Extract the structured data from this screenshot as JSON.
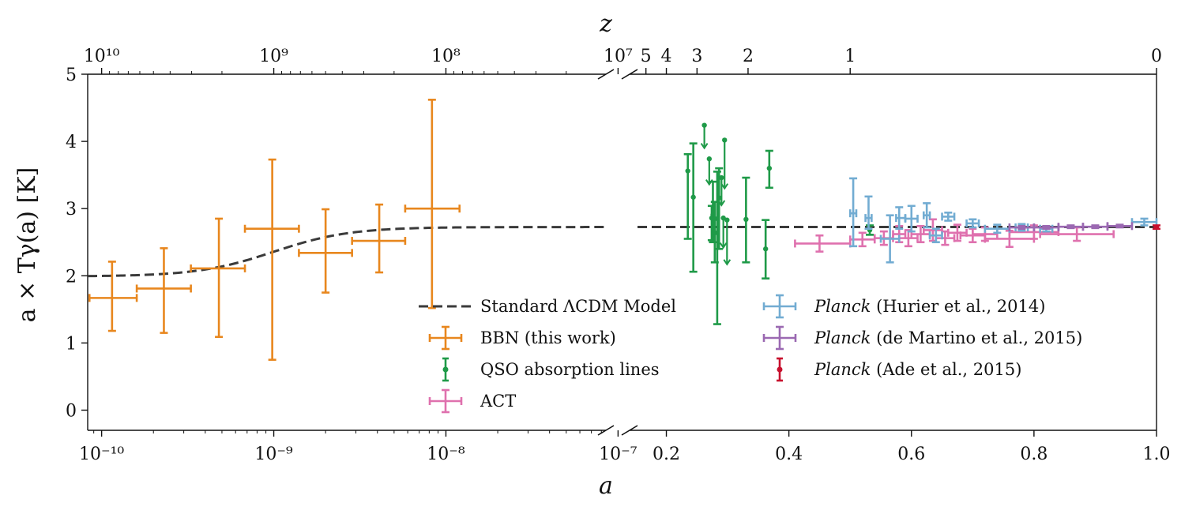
{
  "chart_data": {
    "type": "scatter",
    "xlabel": "a",
    "ylabel": "a × Tγ(a) [K]",
    "top_axis_label": "z",
    "ylim": [
      -0.3,
      5
    ],
    "yticks": [
      "0",
      "1",
      "2",
      "3",
      "4",
      "5"
    ],
    "x_axis_break": true,
    "left_panel": {
      "x_scale": "log",
      "xlim": [
        8.3e-11,
        8.5e-08
      ],
      "bottom_ticks": [
        {
          "value": 1e-10,
          "label": "10⁻¹⁰"
        },
        {
          "value": 1e-09,
          "label": "10⁻⁹"
        },
        {
          "value": 1e-08,
          "label": "10⁻⁸"
        },
        {
          "value": 1e-07,
          "label": "10⁻⁷"
        }
      ],
      "top_ticks": [
        {
          "z": 10000000000.0,
          "label": "10¹⁰"
        },
        {
          "z": 1000000000.0,
          "label": "10⁹"
        },
        {
          "z": 100000000.0,
          "label": "10⁸"
        },
        {
          "z": 10000000.0,
          "label": "10⁷"
        }
      ]
    },
    "right_panel": {
      "x_scale": "linear",
      "xlim": [
        0.14,
        1.0
      ],
      "bottom_ticks": [
        {
          "value": 0.2,
          "label": "0.2"
        },
        {
          "value": 0.4,
          "label": "0.4"
        },
        {
          "value": 0.6,
          "label": "0.6"
        },
        {
          "value": 0.8,
          "label": "0.8"
        },
        {
          "value": 1.0,
          "label": "1.0"
        }
      ],
      "top_ticks": [
        {
          "z": 5,
          "label": "5"
        },
        {
          "z": 4,
          "label": "4"
        },
        {
          "z": 3,
          "label": "3"
        },
        {
          "z": 2,
          "label": "2"
        },
        {
          "z": 1,
          "label": "1"
        },
        {
          "z": 0,
          "label": "0"
        }
      ]
    },
    "model": {
      "name": "Standard ΛCDM Model",
      "color": "#3a3a3a",
      "low_plateau": 1.99,
      "high_plateau": 2.7255,
      "log_a_mid": -9.0,
      "log_a_width": 0.22
    },
    "series": [
      {
        "name": "BBN (this work)",
        "color": "#e8871e",
        "panel": "left",
        "points": [
          {
            "a": 1.15e-10,
            "y": 1.67,
            "a_lo": 8.5e-11,
            "a_hi": 1.6e-10,
            "y_lo": 1.18,
            "y_hi": 2.21
          },
          {
            "a": 2.3e-10,
            "y": 1.81,
            "a_lo": 1.6e-10,
            "a_hi": 3.3e-10,
            "y_lo": 1.15,
            "y_hi": 2.41
          },
          {
            "a": 4.8e-10,
            "y": 2.11,
            "a_lo": 3.3e-10,
            "a_hi": 6.8e-10,
            "y_lo": 1.09,
            "y_hi": 2.85
          },
          {
            "a": 9.8e-10,
            "y": 2.7,
            "a_lo": 6.8e-10,
            "a_hi": 1.4e-09,
            "y_lo": 0.75,
            "y_hi": 3.73
          },
          {
            "a": 2e-09,
            "y": 2.34,
            "a_lo": 1.4e-09,
            "a_hi": 2.85e-09,
            "y_lo": 1.75,
            "y_hi": 2.99
          },
          {
            "a": 4.1e-09,
            "y": 2.52,
            "a_lo": 2.85e-09,
            "a_hi": 5.8e-09,
            "y_lo": 2.05,
            "y_hi": 3.06
          },
          {
            "a": 8.3e-09,
            "y": 3.0,
            "a_lo": 5.8e-09,
            "a_hi": 1.2e-08,
            "y_lo": 1.52,
            "y_hi": 4.62
          }
        ]
      },
      {
        "name": "QSO absorption lines",
        "color": "#1f9a48",
        "panel": "right",
        "points": [
          {
            "a": 0.235,
            "y": 3.56,
            "y_lo": 2.55,
            "y_hi": 3.81
          },
          {
            "a": 0.244,
            "y": 3.17,
            "y_lo": 2.06,
            "y_hi": 3.97
          },
          {
            "a": 0.262,
            "y": 4.24,
            "upper_limit": true,
            "arrow_to": 3.9
          },
          {
            "a": 0.27,
            "y": 3.74,
            "upper_limit": true,
            "arrow_to": 3.36
          },
          {
            "a": 0.274,
            "y": 2.86,
            "y_lo": 2.53,
            "y_hi": 3.04
          },
          {
            "a": 0.276,
            "y": 2.91,
            "y_lo": 2.5,
            "y_hi": 3.4
          },
          {
            "a": 0.279,
            "y": 2.64,
            "y_lo": 2.2,
            "y_hi": 3.1
          },
          {
            "a": 0.283,
            "y": 2.85,
            "y_lo": 1.28,
            "y_hi": 3.55
          },
          {
            "a": 0.286,
            "y": 3.16,
            "y_lo": 2.4,
            "y_hi": 3.6
          },
          {
            "a": 0.29,
            "y": 3.46,
            "upper_limit": true,
            "arrow_to": 3.05
          },
          {
            "a": 0.293,
            "y": 2.86,
            "upper_limit": true,
            "arrow_to": 2.42
          },
          {
            "a": 0.295,
            "y": 4.02,
            "upper_limit": true,
            "arrow_to": 3.3
          },
          {
            "a": 0.299,
            "y": 2.83,
            "upper_limit": true,
            "arrow_to": 2.17
          },
          {
            "a": 0.33,
            "y": 2.84,
            "y_lo": 2.2,
            "y_hi": 3.46
          },
          {
            "a": 0.362,
            "y": 2.4,
            "y_lo": 1.96,
            "y_hi": 2.83
          },
          {
            "a": 0.368,
            "y": 3.6,
            "y_lo": 3.31,
            "y_hi": 3.86
          },
          {
            "a": 0.532,
            "y": 2.68,
            "y_lo": 2.61,
            "y_hi": 2.75
          }
        ]
      },
      {
        "name": "ACT",
        "color": "#df71ae",
        "panel": "right",
        "points": [
          {
            "a": 0.45,
            "y": 2.48,
            "a_lo": 0.41,
            "a_hi": 0.5,
            "y_lo": 2.36,
            "y_hi": 2.6
          },
          {
            "a": 0.52,
            "y": 2.54,
            "a_lo": 0.5,
            "a_hi": 0.54,
            "y_lo": 2.44,
            "y_hi": 2.64
          },
          {
            "a": 0.555,
            "y": 2.56,
            "a_lo": 0.54,
            "a_hi": 0.57,
            "y_lo": 2.46,
            "y_hi": 2.66
          },
          {
            "a": 0.58,
            "y": 2.62,
            "a_lo": 0.57,
            "a_hi": 0.59,
            "y_lo": 2.5,
            "y_hi": 2.74
          },
          {
            "a": 0.595,
            "y": 2.56,
            "a_lo": 0.58,
            "a_hi": 0.61,
            "y_lo": 2.44,
            "y_hi": 2.68
          },
          {
            "a": 0.615,
            "y": 2.62,
            "a_lo": 0.6,
            "a_hi": 0.63,
            "y_lo": 2.5,
            "y_hi": 2.74
          },
          {
            "a": 0.635,
            "y": 2.68,
            "a_lo": 0.62,
            "a_hi": 0.65,
            "y_lo": 2.52,
            "y_hi": 2.84
          },
          {
            "a": 0.655,
            "y": 2.56,
            "a_lo": 0.64,
            "a_hi": 0.67,
            "y_lo": 2.46,
            "y_hi": 2.66
          },
          {
            "a": 0.675,
            "y": 2.64,
            "a_lo": 0.66,
            "a_hi": 0.69,
            "y_lo": 2.52,
            "y_hi": 2.76
          },
          {
            "a": 0.7,
            "y": 2.6,
            "a_lo": 0.68,
            "a_hi": 0.72,
            "y_lo": 2.5,
            "y_hi": 2.7
          },
          {
            "a": 0.72,
            "y": 2.62,
            "a_lo": 0.7,
            "a_hi": 0.74,
            "y_lo": 2.52,
            "y_hi": 2.72
          },
          {
            "a": 0.76,
            "y": 2.55,
            "a_lo": 0.72,
            "a_hi": 0.8,
            "y_lo": 2.43,
            "y_hi": 2.67
          },
          {
            "a": 0.8,
            "y": 2.65,
            "a_lo": 0.76,
            "a_hi": 0.84,
            "y_lo": 2.55,
            "y_hi": 2.75
          },
          {
            "a": 0.87,
            "y": 2.62,
            "a_lo": 0.81,
            "a_hi": 0.93,
            "y_lo": 2.52,
            "y_hi": 2.72
          }
        ]
      },
      {
        "name": "Planck (Hurier et al., 2014)",
        "color": "#72acd2",
        "panel": "right",
        "points": [
          {
            "a": 0.505,
            "y": 2.93,
            "a_lo": 0.5,
            "a_hi": 0.51,
            "y_lo": 2.44,
            "y_hi": 3.45
          },
          {
            "a": 0.53,
            "y": 2.86,
            "a_lo": 0.525,
            "a_hi": 0.535,
            "y_lo": 2.7,
            "y_hi": 3.18
          },
          {
            "a": 0.565,
            "y": 2.55,
            "a_lo": 0.55,
            "a_hi": 0.58,
            "y_lo": 2.2,
            "y_hi": 2.9
          },
          {
            "a": 0.58,
            "y": 2.86,
            "a_lo": 0.575,
            "a_hi": 0.59,
            "y_lo": 2.7,
            "y_hi": 3.02
          },
          {
            "a": 0.6,
            "y": 2.85,
            "a_lo": 0.59,
            "a_hi": 0.61,
            "y_lo": 2.66,
            "y_hi": 3.04
          },
          {
            "a": 0.625,
            "y": 2.9,
            "a_lo": 0.62,
            "a_hi": 0.63,
            "y_lo": 2.72,
            "y_hi": 3.08
          },
          {
            "a": 0.64,
            "y": 2.6,
            "a_lo": 0.63,
            "a_hi": 0.65,
            "y_lo": 2.5,
            "y_hi": 2.7
          },
          {
            "a": 0.66,
            "y": 2.88,
            "a_lo": 0.65,
            "a_hi": 0.67,
            "y_lo": 2.82,
            "y_hi": 2.94
          },
          {
            "a": 0.7,
            "y": 2.78,
            "a_lo": 0.69,
            "a_hi": 0.71,
            "y_lo": 2.72,
            "y_hi": 2.84
          },
          {
            "a": 0.74,
            "y": 2.7,
            "a_lo": 0.72,
            "a_hi": 0.76,
            "y_lo": 2.64,
            "y_hi": 2.76
          },
          {
            "a": 0.78,
            "y": 2.72,
            "a_lo": 0.77,
            "a_hi": 0.79,
            "y_lo": 2.67,
            "y_hi": 2.77
          },
          {
            "a": 0.82,
            "y": 2.7,
            "a_lo": 0.81,
            "a_hi": 0.83,
            "y_lo": 2.66,
            "y_hi": 2.74
          },
          {
            "a": 0.98,
            "y": 2.8,
            "a_lo": 0.96,
            "a_hi": 1.0,
            "y_lo": 2.75,
            "y_hi": 2.85
          }
        ]
      },
      {
        "name": "Planck (de Martino et al., 2015)",
        "color": "#9b69b2",
        "panel": "right",
        "points": [
          {
            "a": 0.78,
            "y": 2.72,
            "a_lo": 0.76,
            "a_hi": 0.8,
            "y_lo": 2.7,
            "y_hi": 2.74
          },
          {
            "a": 0.82,
            "y": 2.72,
            "a_lo": 0.8,
            "a_hi": 0.84,
            "y_lo": 2.7,
            "y_hi": 2.74
          },
          {
            "a": 0.86,
            "y": 2.73,
            "a_lo": 0.84,
            "a_hi": 0.88,
            "y_lo": 2.71,
            "y_hi": 2.75
          },
          {
            "a": 0.9,
            "y": 2.73,
            "a_lo": 0.88,
            "a_hi": 0.92,
            "y_lo": 2.71,
            "y_hi": 2.75
          },
          {
            "a": 0.94,
            "y": 2.74,
            "a_lo": 0.92,
            "a_hi": 0.96,
            "y_lo": 2.72,
            "y_hi": 2.76
          }
        ]
      },
      {
        "name": "Planck (Ade et al., 2015)",
        "color": "#c8102e",
        "panel": "right",
        "points": [
          {
            "a": 1.0,
            "y": 2.7255,
            "y_lo": 2.7,
            "y_hi": 2.75
          }
        ]
      }
    ],
    "legend": {
      "placement": "lower-center",
      "columns": 2,
      "entries": [
        {
          "label": "Standard ΛCDM Model",
          "kind": "dashed",
          "color": "#3a3a3a"
        },
        {
          "label": "BBN (this work)",
          "kind": "errorbar",
          "color": "#e8871e"
        },
        {
          "label": "QSO absorption lines",
          "kind": "point",
          "color": "#1f9a48"
        },
        {
          "label": "ACT",
          "kind": "errorbar",
          "color": "#df71ae"
        },
        {
          "label_italic": "Planck",
          "label": " (Hurier et al., 2014)",
          "kind": "errorbar",
          "color": "#72acd2"
        },
        {
          "label_italic": "Planck",
          "label": " (de Martino et al., 2015)",
          "kind": "errorbar",
          "color": "#9b69b2"
        },
        {
          "label_italic": "Planck",
          "label": " (Ade et al., 2015)",
          "kind": "point",
          "color": "#c8102e"
        }
      ]
    }
  }
}
